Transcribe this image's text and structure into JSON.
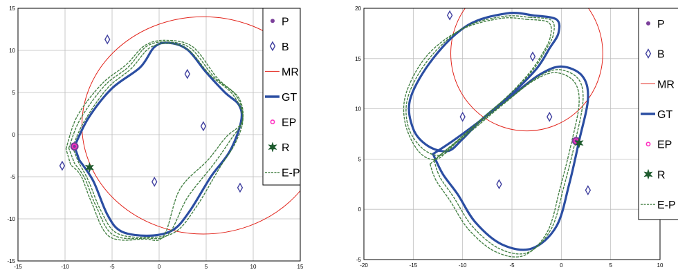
{
  "colors": {
    "beacon": "#3f3f9f",
    "mr": "#e2231a",
    "gt": "#2b4ea2",
    "ep": "#ff2fc0",
    "r": "#1e5b2e",
    "ep_path": "#3b7a3b",
    "p": "#7b3f9a",
    "grid": "#bdbdbd"
  },
  "chart_data": [
    {
      "type": "scatter",
      "title": "",
      "xlabel": "",
      "ylabel": "",
      "xlim": [
        -15,
        15
      ],
      "ylim": [
        -15,
        15
      ],
      "xticks": [
        "-15",
        "-10",
        "-5",
        "0",
        "5",
        "10",
        "15"
      ],
      "yticks": [
        "-15",
        "-10",
        "-5",
        "0",
        "5",
        "10",
        "15"
      ],
      "grid": true,
      "legend": {
        "placement": "top-right",
        "entries": [
          "P",
          "B",
          "MR",
          "GT",
          "EP",
          "R",
          "E-P"
        ]
      },
      "points": {
        "P": [
          [
            -9,
            -1.4
          ]
        ],
        "B": [
          [
            -5.5,
            11.3
          ],
          [
            3,
            7.2
          ],
          [
            4.7,
            1
          ],
          [
            -10.3,
            -3.7
          ],
          [
            -0.5,
            -5.6
          ],
          [
            8.6,
            -6.3
          ]
        ],
        "EP": [
          [
            -9,
            -1.4
          ]
        ],
        "R": [
          [
            -7.4,
            -3.9
          ]
        ]
      },
      "mr_circle": {
        "center": [
          4.7,
          1.1
        ],
        "radius": 12.9
      },
      "gt_path": [
        [
          -9,
          -1.4
        ],
        [
          -7.5,
          2
        ],
        [
          -5,
          5.5
        ],
        [
          -2,
          8
        ],
        [
          -0.5,
          10.4
        ],
        [
          1,
          10.9
        ],
        [
          3,
          10.1
        ],
        [
          5,
          7.4
        ],
        [
          7,
          5
        ],
        [
          8.5,
          3.5
        ],
        [
          8.7,
          1.5
        ],
        [
          7.5,
          -2
        ],
        [
          5.5,
          -5
        ],
        [
          3.3,
          -9
        ],
        [
          1.5,
          -11.3
        ],
        [
          -1,
          -12
        ],
        [
          -4,
          -11.5
        ],
        [
          -5.5,
          -9.5
        ],
        [
          -7,
          -5.5
        ],
        [
          -8.5,
          -3
        ]
      ],
      "ep_paths": [
        [
          [
            -9.2,
            -1.5
          ],
          [
            -8,
            1.5
          ],
          [
            -5.5,
            5.5
          ],
          [
            -3,
            7.8
          ],
          [
            -1,
            10.3
          ],
          [
            1.2,
            10.8
          ],
          [
            3.2,
            10
          ],
          [
            5.4,
            7.1
          ],
          [
            7.8,
            4.8
          ],
          [
            8.9,
            2
          ],
          [
            8.1,
            -1
          ],
          [
            6.4,
            -4
          ],
          [
            4,
            -8.5
          ],
          [
            1.8,
            -11.5
          ],
          [
            -1,
            -12.2
          ],
          [
            -4.5,
            -11.7
          ],
          [
            -6.2,
            -9
          ],
          [
            -7.5,
            -5.5
          ],
          [
            -8.6,
            -3.2
          ]
        ],
        [
          [
            -9.6,
            -1.6
          ],
          [
            -8.4,
            1.8
          ],
          [
            -5.8,
            5.8
          ],
          [
            -3.3,
            8
          ],
          [
            -1.3,
            10.5
          ],
          [
            1,
            11
          ],
          [
            3.4,
            10.2
          ],
          [
            5.8,
            6.9
          ],
          [
            8.2,
            4.6
          ],
          [
            8.9,
            1.8
          ],
          [
            7.6,
            -0.6
          ],
          [
            5.8,
            -3.5
          ],
          [
            3,
            -7.5
          ],
          [
            1,
            -11.8
          ],
          [
            -1.3,
            -12.3
          ],
          [
            -4.9,
            -11.9
          ],
          [
            -6.7,
            -8.5
          ],
          [
            -7.9,
            -5.2
          ],
          [
            -9,
            -3.4
          ]
        ],
        [
          [
            -9.9,
            -1.7
          ],
          [
            -8.7,
            2.2
          ],
          [
            -6.1,
            6
          ],
          [
            -3.5,
            8.3
          ],
          [
            -1.5,
            10.6
          ],
          [
            0.8,
            11.2
          ],
          [
            3.6,
            10.4
          ],
          [
            6.2,
            6.7
          ],
          [
            8.5,
            4.3
          ],
          [
            8.8,
            1.5
          ],
          [
            7.1,
            -0.3
          ],
          [
            5.2,
            -3
          ],
          [
            2.2,
            -6.5
          ],
          [
            0.5,
            -12
          ],
          [
            -1.6,
            -12.4
          ],
          [
            -5.3,
            -12.1
          ],
          [
            -7.2,
            -8
          ],
          [
            -8.3,
            -4.9
          ],
          [
            -9.4,
            -3.6
          ]
        ]
      ]
    },
    {
      "type": "scatter",
      "title": "",
      "xlabel": "",
      "ylabel": "",
      "xlim": [
        -20,
        10
      ],
      "ylim": [
        -5,
        20
      ],
      "xticks": [
        "-20",
        "-15",
        "-10",
        "-5",
        "0",
        "5",
        "10"
      ],
      "yticks": [
        "-5",
        "0",
        "5",
        "10",
        "15",
        "20"
      ],
      "grid": true,
      "legend": {
        "placement": "top-right",
        "entries": [
          "P",
          "B",
          "MR",
          "GT",
          "EP",
          "R",
          "E-P"
        ]
      },
      "points": {
        "P": [
          [
            1.5,
            6.8
          ]
        ],
        "B": [
          [
            -11.3,
            19.3
          ],
          [
            -2.9,
            15.2
          ],
          [
            -10,
            9.2
          ],
          [
            -1.2,
            9.2
          ],
          [
            -6.3,
            2.5
          ],
          [
            2.7,
            1.9
          ]
        ],
        "EP": [
          [
            1.5,
            6.8
          ]
        ],
        "R": [
          [
            1.8,
            6.6
          ]
        ]
      },
      "mr_circle": {
        "center": [
          -3.5,
          15.5
        ],
        "radius": 7.7
      },
      "gt_path": [
        [
          -2.9,
          19.3
        ],
        [
          -0.5,
          18.9
        ],
        [
          -0.3,
          17.5
        ],
        [
          -1.2,
          16
        ],
        [
          -2.5,
          14
        ],
        [
          -5,
          11.5
        ],
        [
          -8,
          9
        ],
        [
          -10,
          7
        ],
        [
          -11.5,
          5.8
        ],
        [
          -13.5,
          6.3
        ],
        [
          -15,
          8
        ],
        [
          -15.3,
          11
        ],
        [
          -13,
          15
        ],
        [
          -9.5,
          18.3
        ],
        [
          -5.5,
          19.5
        ],
        [
          -2.9,
          19.3
        ]
      ],
      "gt_path2": [
        [
          -13,
          5.5
        ],
        [
          -11,
          6.8
        ],
        [
          -8.5,
          8.6
        ],
        [
          -5,
          11.3
        ],
        [
          -2.2,
          13.4
        ],
        [
          0,
          14.2
        ],
        [
          2.1,
          13.3
        ],
        [
          2.7,
          11
        ],
        [
          1.8,
          6.8
        ],
        [
          0.8,
          2.5
        ],
        [
          -0.5,
          -1.7
        ],
        [
          -3,
          -3.9
        ],
        [
          -6,
          -3.5
        ],
        [
          -8.7,
          -1.3
        ],
        [
          -10.5,
          1.5
        ],
        [
          -12,
          3.5
        ],
        [
          -13,
          5.5
        ]
      ],
      "ep_paths": [
        [
          [
            -3.2,
            19.1
          ],
          [
            -1,
            18.8
          ],
          [
            -0.8,
            17.4
          ],
          [
            -1.6,
            15.8
          ],
          [
            -3,
            13.7
          ],
          [
            -5.4,
            11.3
          ],
          [
            -8.3,
            8.8
          ],
          [
            -10.4,
            6.9
          ],
          [
            -12.1,
            5.4
          ],
          [
            -14,
            6
          ],
          [
            -15.5,
            8.2
          ],
          [
            -15.5,
            11.3
          ],
          [
            -13.3,
            15.1
          ],
          [
            -9.8,
            18.1
          ],
          [
            -5.8,
            19.2
          ],
          [
            -3.2,
            19.1
          ]
        ],
        [
          [
            -3.5,
            18.9
          ],
          [
            -1.3,
            18.6
          ],
          [
            -1.1,
            17.2
          ],
          [
            -1.9,
            15.5
          ],
          [
            -3.3,
            13.5
          ],
          [
            -5.7,
            11
          ],
          [
            -8.6,
            8.5
          ],
          [
            -10.8,
            6.6
          ],
          [
            -12.6,
            5
          ],
          [
            -14.4,
            5.7
          ],
          [
            -15.8,
            8.5
          ],
          [
            -15.7,
            11.6
          ],
          [
            -13.6,
            15.3
          ],
          [
            -10.1,
            17.9
          ],
          [
            -6.1,
            19
          ],
          [
            -3.5,
            18.9
          ]
        ],
        [
          [
            -12.9,
            4.9
          ],
          [
            -11.2,
            6.3
          ],
          [
            -8.8,
            8.2
          ],
          [
            -5.4,
            10.9
          ],
          [
            -2.5,
            13.1
          ],
          [
            -0.3,
            13.9
          ],
          [
            1.7,
            13
          ],
          [
            2.2,
            10.8
          ],
          [
            1.4,
            6.7
          ],
          [
            0.3,
            2.4
          ],
          [
            -1,
            -1.9
          ],
          [
            -3.4,
            -4.3
          ],
          [
            -6.3,
            -3.9
          ],
          [
            -9,
            -1.7
          ],
          [
            -10.9,
            1.2
          ],
          [
            -12.3,
            3.2
          ],
          [
            -12.9,
            4.9
          ]
        ],
        [
          [
            -13.3,
            4.5
          ],
          [
            -11.6,
            5.9
          ],
          [
            -9.1,
            7.8
          ],
          [
            -5.7,
            10.6
          ],
          [
            -2.8,
            12.8
          ],
          [
            -0.6,
            13.6
          ],
          [
            1.3,
            12.7
          ],
          [
            1.8,
            10.5
          ],
          [
            1,
            6.5
          ],
          [
            -0.1,
            2.2
          ],
          [
            -1.4,
            -2.2
          ],
          [
            -3.8,
            -4.6
          ],
          [
            -6.7,
            -4.2
          ],
          [
            -9.4,
            -2
          ],
          [
            -11.3,
            0.9
          ],
          [
            -12.7,
            2.9
          ],
          [
            -13.3,
            4.5
          ]
        ]
      ]
    }
  ]
}
